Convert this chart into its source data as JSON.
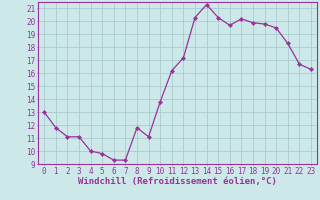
{
  "x": [
    0,
    1,
    2,
    3,
    4,
    5,
    6,
    7,
    8,
    9,
    10,
    11,
    12,
    13,
    14,
    15,
    16,
    17,
    18,
    19,
    20,
    21,
    22,
    23
  ],
  "y": [
    13,
    11.8,
    11.1,
    11.1,
    10.0,
    9.8,
    9.3,
    9.3,
    11.8,
    11.1,
    13.8,
    16.2,
    17.2,
    20.3,
    21.3,
    20.3,
    19.7,
    20.2,
    19.9,
    19.8,
    19.5,
    18.3,
    16.7,
    16.3
  ],
  "line_color": "#993399",
  "marker_color": "#993399",
  "bg_color": "#cce8e8",
  "grid_color": "#aacccc",
  "xlabel": "Windchill (Refroidissement éolien,°C)",
  "ylim": [
    9,
    21.5
  ],
  "xlim": [
    -0.5,
    23.5
  ],
  "yticks": [
    9,
    10,
    11,
    12,
    13,
    14,
    15,
    16,
    17,
    18,
    19,
    20,
    21
  ],
  "xticks": [
    0,
    1,
    2,
    3,
    4,
    5,
    6,
    7,
    8,
    9,
    10,
    11,
    12,
    13,
    14,
    15,
    16,
    17,
    18,
    19,
    20,
    21,
    22,
    23
  ],
  "tick_color": "#993399",
  "label_color": "#993399",
  "axis_color": "#993399",
  "xlabel_fontsize": 6.5,
  "tick_fontsize": 5.5
}
